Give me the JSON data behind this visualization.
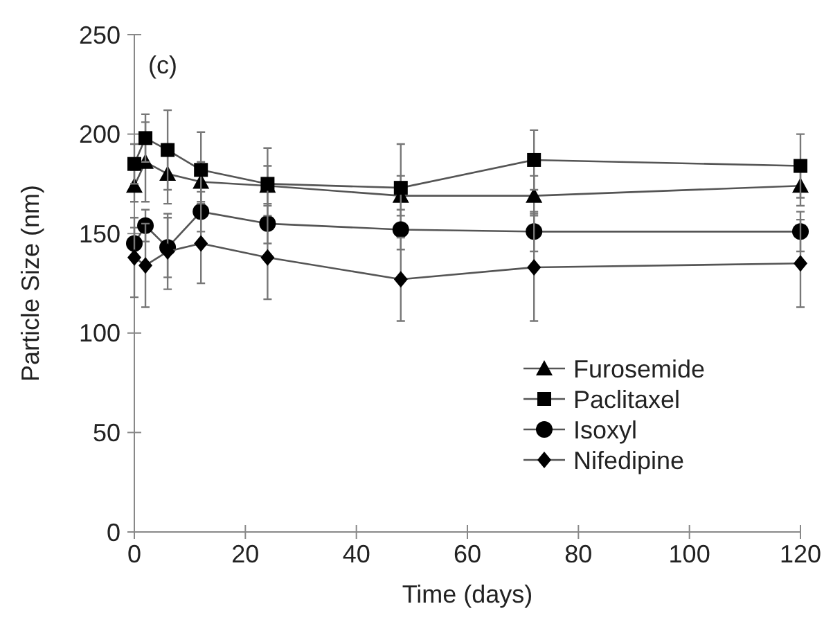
{
  "chart_data": {
    "type": "line",
    "xlabel": "Time (days)",
    "ylabel": "Particle Size (nm)",
    "annotations": [
      "(c)"
    ],
    "x": [
      0,
      2,
      6,
      12,
      24,
      48,
      72,
      120
    ],
    "xlim": [
      0,
      120
    ],
    "xticks": [
      0,
      20,
      40,
      60,
      80,
      100,
      120
    ],
    "ylim": [
      0,
      250
    ],
    "yticks": [
      0,
      50,
      100,
      150,
      200,
      250
    ],
    "legend": "bottom right",
    "grid": false,
    "line_style": "solid",
    "series": [
      {
        "name": "Furosemide",
        "color": "#000000",
        "marker": "triangle",
        "values": [
          174,
          186,
          180,
          176,
          174,
          169,
          169,
          174
        ],
        "errors": [
          8,
          20,
          15,
          10,
          10,
          10,
          10,
          10
        ]
      },
      {
        "name": "Paclitaxel",
        "color": "#000000",
        "marker": "square",
        "values": [
          185,
          198,
          192,
          182,
          175,
          173,
          187,
          184
        ],
        "errors": [
          10,
          12,
          20,
          19,
          18,
          22,
          15,
          16
        ]
      },
      {
        "name": "Isoxyl",
        "color": "#000000",
        "marker": "circle",
        "values": [
          145,
          154,
          143,
          161,
          155,
          152,
          151,
          151
        ],
        "errors": [
          8,
          8,
          15,
          10,
          10,
          10,
          10,
          10
        ]
      },
      {
        "name": "Nifedipine",
        "color": "#000000",
        "marker": "diamond",
        "values": [
          138,
          134,
          141,
          145,
          138,
          127,
          133,
          135
        ],
        "errors": [
          20,
          21,
          19,
          20,
          21,
          21,
          27,
          22
        ]
      }
    ]
  }
}
